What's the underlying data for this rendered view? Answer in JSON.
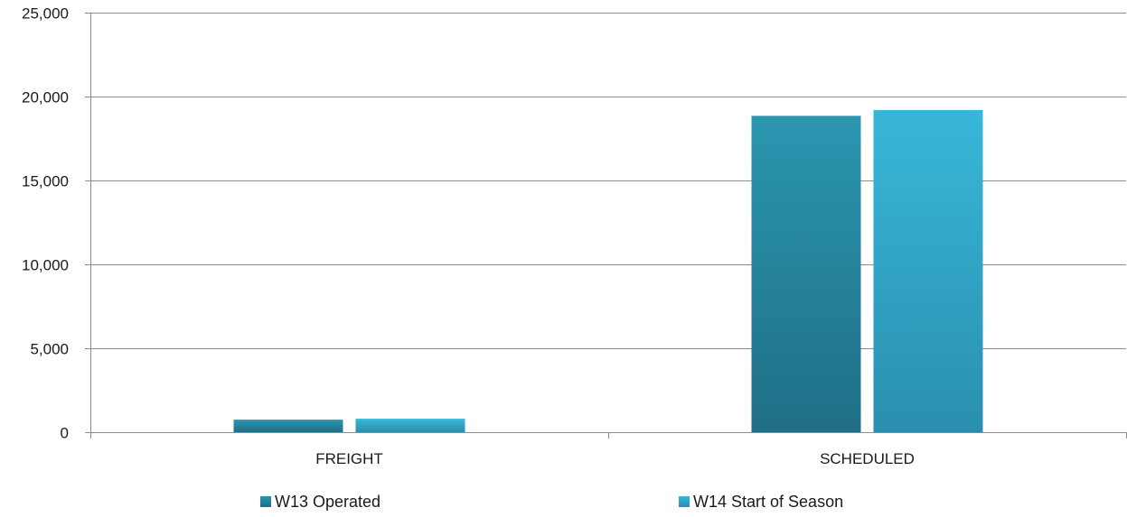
{
  "chart_data": {
    "type": "bar",
    "categories": [
      "FREIGHT",
      "SCHEDULED"
    ],
    "series": [
      {
        "name": "W13 Operated",
        "values": [
          750,
          18850
        ],
        "color": "#2a8ea6"
      },
      {
        "name": "W14 Start of Season",
        "values": [
          800,
          19200
        ],
        "color": "#36b2d4"
      }
    ],
    "ylim": [
      0,
      25000
    ],
    "yticks": [
      0,
      5000,
      10000,
      15000,
      20000,
      25000
    ],
    "ytick_labels": [
      "0",
      "5,000",
      "10,000",
      "15,000",
      "20,000",
      "25,000"
    ],
    "grid": true,
    "legend": "bottom"
  }
}
